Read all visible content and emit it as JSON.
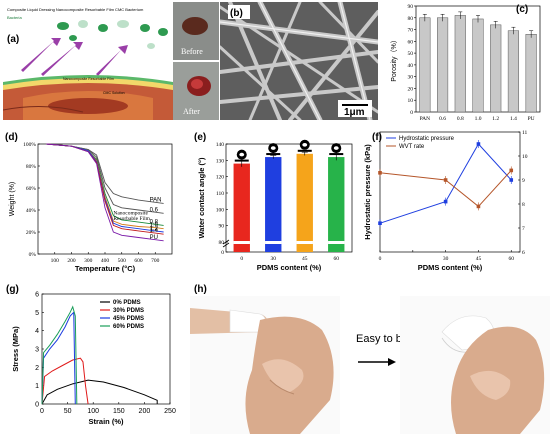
{
  "panel_labels": {
    "a": "(a)",
    "b": "(b)",
    "c": "(c)",
    "d": "(d)",
    "e": "(e)",
    "f": "(f)",
    "g": "(g)",
    "h": "(h)"
  },
  "panel_a": {
    "legend_line": "Composite Liquid Dressing  Nanocomposite Resorbable Film  CMC  Bacterium",
    "bacteria_label": "Bacteria",
    "film_label": "Nanocomposite Resorbable Film",
    "cmc_label": "CMC Solution"
  },
  "panel_a_photos": {
    "before": "Before",
    "after": "After"
  },
  "panel_b": {
    "scale_bar": "1μm"
  },
  "colors": {
    "e_red": "#e8271e",
    "e_blue": "#1f3fe0",
    "e_orange": "#f5a41b",
    "e_green": "#27b34a",
    "hydro": "#1f3fe0",
    "wvt": "#b5562a",
    "pdms0": "#000000",
    "pdms30": "#e01a1a",
    "pdms45": "#1a3ae0",
    "pdms60": "#1a9e5a"
  },
  "chart_data": [
    {
      "type": "bar",
      "panel": "c",
      "ylabel": "Porosity（%）",
      "ylim": [
        0,
        90
      ],
      "yticks": [
        0,
        10,
        20,
        30,
        40,
        50,
        60,
        70,
        80,
        90
      ],
      "categories": [
        "PAN",
        "0.6",
        "0.8",
        "1.0",
        "1.2",
        "1.4",
        "PU"
      ],
      "values": [
        80,
        80,
        82,
        79,
        74,
        69,
        66
      ],
      "errors": [
        3,
        3,
        3,
        3,
        3,
        3,
        3
      ]
    },
    {
      "type": "line",
      "panel": "d",
      "xlabel": "Temperature (°C)",
      "ylabel": "Weight (%)",
      "xlim": [
        0,
        800
      ],
      "ylim": [
        0,
        100
      ],
      "xticks": [
        100,
        200,
        300,
        400,
        500,
        600,
        700
      ],
      "yticks": [
        0,
        20,
        40,
        60,
        80,
        100
      ],
      "yticklabels": [
        "0%",
        "20%",
        "40%",
        "60%",
        "80%",
        "100%"
      ],
      "series_labels": [
        "PAN",
        "0.6",
        "0.8",
        "1.0",
        "1.2",
        "1.4",
        "PU"
      ],
      "annotation": "Nanocomposite\nResorbable Film",
      "series": [
        {
          "name": "PAN",
          "x": [
            50,
            200,
            300,
            350,
            400,
            450,
            500,
            600,
            700,
            750
          ],
          "y": [
            100,
            98,
            95,
            90,
            65,
            55,
            52,
            49,
            47,
            46
          ]
        },
        {
          "name": "0.6",
          "x": [
            50,
            200,
            300,
            350,
            400,
            450,
            500,
            600,
            700,
            750
          ],
          "y": [
            100,
            98,
            95,
            88,
            60,
            45,
            42,
            40,
            38,
            37
          ]
        },
        {
          "name": "0.8",
          "x": [
            50,
            200,
            300,
            350,
            400,
            450,
            500,
            600,
            700,
            750
          ],
          "y": [
            100,
            98,
            94,
            86,
            55,
            35,
            31,
            29,
            27,
            26
          ]
        },
        {
          "name": "1.0",
          "x": [
            50,
            200,
            300,
            350,
            400,
            450,
            500,
            600,
            700,
            750
          ],
          "y": [
            100,
            98,
            94,
            85,
            52,
            30,
            27,
            25,
            24,
            23
          ]
        },
        {
          "name": "1.2",
          "x": [
            50,
            200,
            300,
            350,
            400,
            450,
            500,
            600,
            700,
            750
          ],
          "y": [
            100,
            98,
            94,
            84,
            50,
            28,
            25,
            23,
            21,
            20
          ]
        },
        {
          "name": "1.4",
          "x": [
            50,
            200,
            300,
            350,
            400,
            450,
            500,
            600,
            700,
            750
          ],
          "y": [
            100,
            98,
            93,
            83,
            48,
            26,
            23,
            21,
            19,
            18
          ]
        },
        {
          "name": "PU",
          "x": [
            50,
            200,
            300,
            350,
            400,
            450,
            500,
            600,
            700,
            750
          ],
          "y": [
            100,
            98,
            93,
            82,
            42,
            20,
            17,
            15,
            13,
            12
          ]
        }
      ]
    },
    {
      "type": "bar",
      "panel": "e",
      "xlabel": "PDMS content (%)",
      "ylabel": "Water contact angle (°)",
      "ylim": [
        0,
        140
      ],
      "yticks": [
        0,
        80,
        90,
        100,
        110,
        120,
        130,
        140
      ],
      "categories": [
        "0",
        "30",
        "45",
        "60"
      ],
      "values": [
        128,
        132,
        134,
        132
      ],
      "errors": [
        2,
        1,
        1,
        2
      ]
    },
    {
      "type": "line",
      "panel": "f",
      "xlabel": "PDMS content (%)",
      "ylabel": "Hydrostatic pressure (kPa)",
      "ylabel_right": "WVT rate (kg/m²·day)",
      "x": [
        0,
        30,
        45,
        60
      ],
      "xticks": [
        0,
        15,
        30,
        45,
        60
      ],
      "series": [
        {
          "name": "Hydrostatic pressure",
          "values": [
            7.2,
            8.1,
            10.5,
            9.0
          ]
        },
        {
          "name": "WVT rate",
          "values": [
            9.3,
            9.0,
            7.9,
            9.4
          ]
        }
      ],
      "ylim_right": [
        6,
        11
      ],
      "yticks_right": [
        6,
        7,
        8,
        9,
        10,
        11
      ]
    },
    {
      "type": "line",
      "panel": "g",
      "xlabel": "Strain (%)",
      "ylabel": "Stress (MPa)",
      "xlim": [
        0,
        250
      ],
      "ylim": [
        0,
        6
      ],
      "xticks": [
        0,
        50,
        100,
        150,
        200,
        250
      ],
      "yticks": [
        0,
        1,
        2,
        3,
        4,
        5,
        6
      ],
      "series": [
        {
          "name": "0% PDMS",
          "x": [
            0,
            10,
            30,
            60,
            90,
            120,
            160,
            200,
            225,
            225
          ],
          "y": [
            0,
            0.5,
            0.8,
            1.1,
            1.3,
            1.2,
            0.9,
            0.5,
            0.2,
            0
          ]
        },
        {
          "name": "30% PDMS",
          "x": [
            0,
            5,
            20,
            40,
            60,
            75,
            80,
            85,
            90
          ],
          "y": [
            0,
            1.5,
            1.8,
            2.1,
            2.4,
            2.5,
            2.3,
            1.0,
            0
          ]
        },
        {
          "name": "45% PDMS",
          "x": [
            0,
            3,
            15,
            30,
            45,
            55,
            62,
            65
          ],
          "y": [
            0,
            2.5,
            3.0,
            3.5,
            4.2,
            4.8,
            5.0,
            0
          ]
        },
        {
          "name": "60% PDMS",
          "x": [
            0,
            3,
            15,
            30,
            45,
            55,
            60,
            65,
            68
          ],
          "y": [
            0,
            2.8,
            3.2,
            3.8,
            4.5,
            5.0,
            5.3,
            4.8,
            0
          ]
        }
      ]
    }
  ],
  "panel_h": {
    "caption": "Easy to bend"
  }
}
